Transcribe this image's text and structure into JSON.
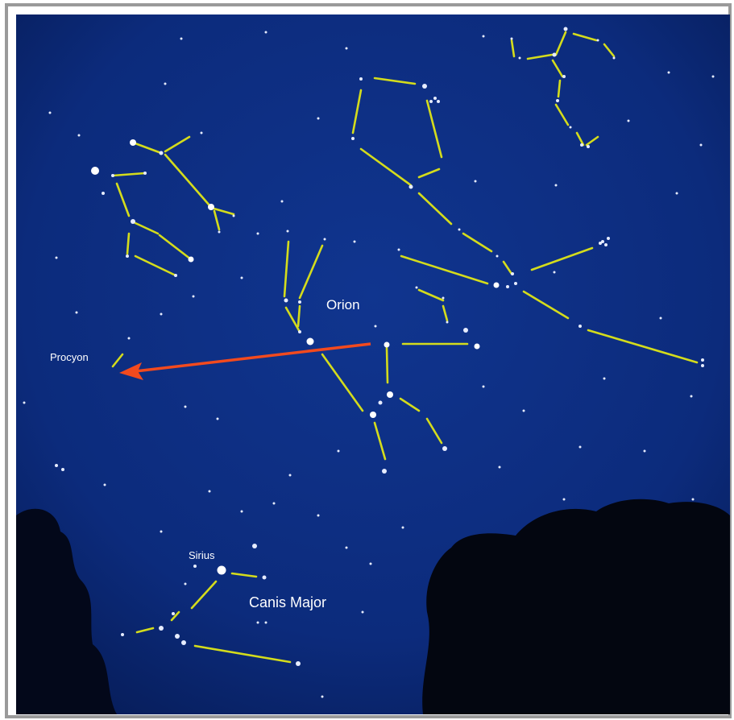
{
  "labels": [
    {
      "text": "Procyon"
    },
    {
      "text": "Orion"
    },
    {
      "text": "Sirius"
    },
    {
      "text": "Canis Major"
    }
  ]
}
